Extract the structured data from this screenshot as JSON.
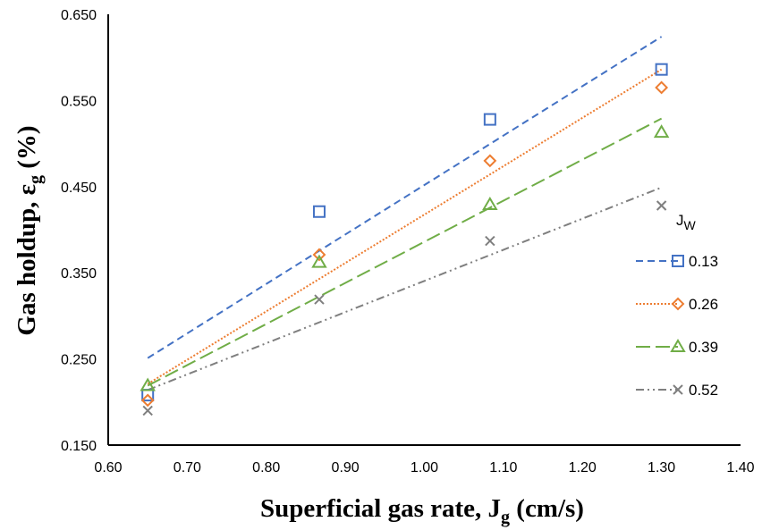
{
  "chart_data": {
    "type": "scatter",
    "xlabel": {
      "main": "Superficial gas rate, J",
      "sub": "g",
      "unit": " (cm/s)"
    },
    "ylabel": {
      "main": "Gas holdup, ε",
      "sub": "g",
      "unit": " (%)"
    },
    "xlim": [
      0.6,
      1.4
    ],
    "ylim": [
      0.15,
      0.65
    ],
    "xticks": [
      "0.60",
      "0.70",
      "0.80",
      "0.90",
      "1.00",
      "1.10",
      "1.20",
      "1.30",
      "1.40"
    ],
    "yticks": [
      "0.150",
      "0.250",
      "0.350",
      "0.450",
      "0.550",
      "0.650"
    ],
    "legend_title": {
      "main": "J",
      "sub": "W"
    },
    "grid": false,
    "series": [
      {
        "name": "0.13",
        "color": "#4472C4",
        "marker": "square",
        "dash": "8,5",
        "x": [
          0.65,
          0.867,
          1.083,
          1.3
        ],
        "y": [
          0.208,
          0.421,
          0.528,
          0.586
        ],
        "trend": [
          [
            0.65,
            0.251
          ],
          [
            1.3,
            0.624
          ]
        ]
      },
      {
        "name": "0.26",
        "color": "#ED7D31",
        "marker": "diamond",
        "dash": "2,2",
        "x": [
          0.65,
          0.867,
          1.083,
          1.3
        ],
        "y": [
          0.202,
          0.371,
          0.48,
          0.565
        ],
        "trend": [
          [
            0.65,
            0.221
          ],
          [
            1.3,
            0.586
          ]
        ]
      },
      {
        "name": "0.39",
        "color": "#70AD47",
        "marker": "triangle",
        "dash": "16,6",
        "x": [
          0.65,
          0.867,
          1.083,
          1.3
        ],
        "y": [
          0.219,
          0.362,
          0.429,
          0.513
        ],
        "trend": [
          [
            0.65,
            0.219
          ],
          [
            1.3,
            0.529
          ]
        ]
      },
      {
        "name": "0.52",
        "color": "#7F7F7F",
        "marker": "x",
        "dash": "9,4,2,4,2,4",
        "x": [
          0.65,
          0.867,
          1.083,
          1.3
        ],
        "y": [
          0.19,
          0.319,
          0.387,
          0.428
        ],
        "trend": [
          [
            0.65,
            0.214
          ],
          [
            1.3,
            0.449
          ]
        ]
      }
    ]
  }
}
